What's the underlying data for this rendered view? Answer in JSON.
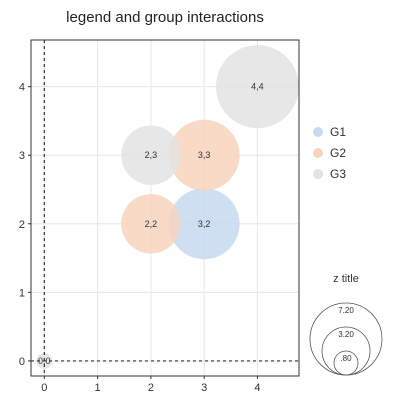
{
  "chart_data": {
    "type": "scatter",
    "title": "legend and group interactions",
    "xlabel": "",
    "ylabel": "",
    "xlim": [
      -0.25,
      4.78
    ],
    "ylim": [
      -0.22,
      4.68
    ],
    "xticks": [
      "0",
      "1",
      "2",
      "3",
      "4"
    ],
    "yticks": [
      "0",
      "1",
      "2",
      "3",
      "4"
    ],
    "grid": true,
    "reference_lines": [
      {
        "axis": "x",
        "value": 0,
        "style": "dashed"
      },
      {
        "axis": "y",
        "value": 0,
        "style": "dashed"
      }
    ],
    "series": [
      {
        "name": "G1",
        "color": "#c5d9ef",
        "points": [
          {
            "x": 3,
            "y": 2,
            "z": 7.2,
            "label": "3,2"
          }
        ]
      },
      {
        "name": "G2",
        "color": "#f7d4bd",
        "points": [
          {
            "x": 2,
            "y": 2,
            "z": 4.7,
            "label": "2,2"
          },
          {
            "x": 3,
            "y": 3,
            "z": 7.2,
            "label": "3,3"
          }
        ]
      },
      {
        "name": "G3",
        "color": "#e3e3e3",
        "points": [
          {
            "x": 2,
            "y": 3,
            "z": 4.7,
            "label": "2,3"
          },
          {
            "x": 4,
            "y": 4,
            "z": 10.4,
            "label": "4,4"
          },
          {
            "x": 0,
            "y": 0,
            "z": 0.05,
            "label": "0,0"
          }
        ]
      }
    ],
    "legend": {
      "position": "right",
      "entries": [
        "G1",
        "G2",
        "G3"
      ]
    },
    "size_legend": {
      "title": "z title",
      "labels": [
        "7.20",
        "3.20",
        ".80"
      ],
      "values": [
        7.2,
        3.2,
        0.8
      ]
    }
  }
}
